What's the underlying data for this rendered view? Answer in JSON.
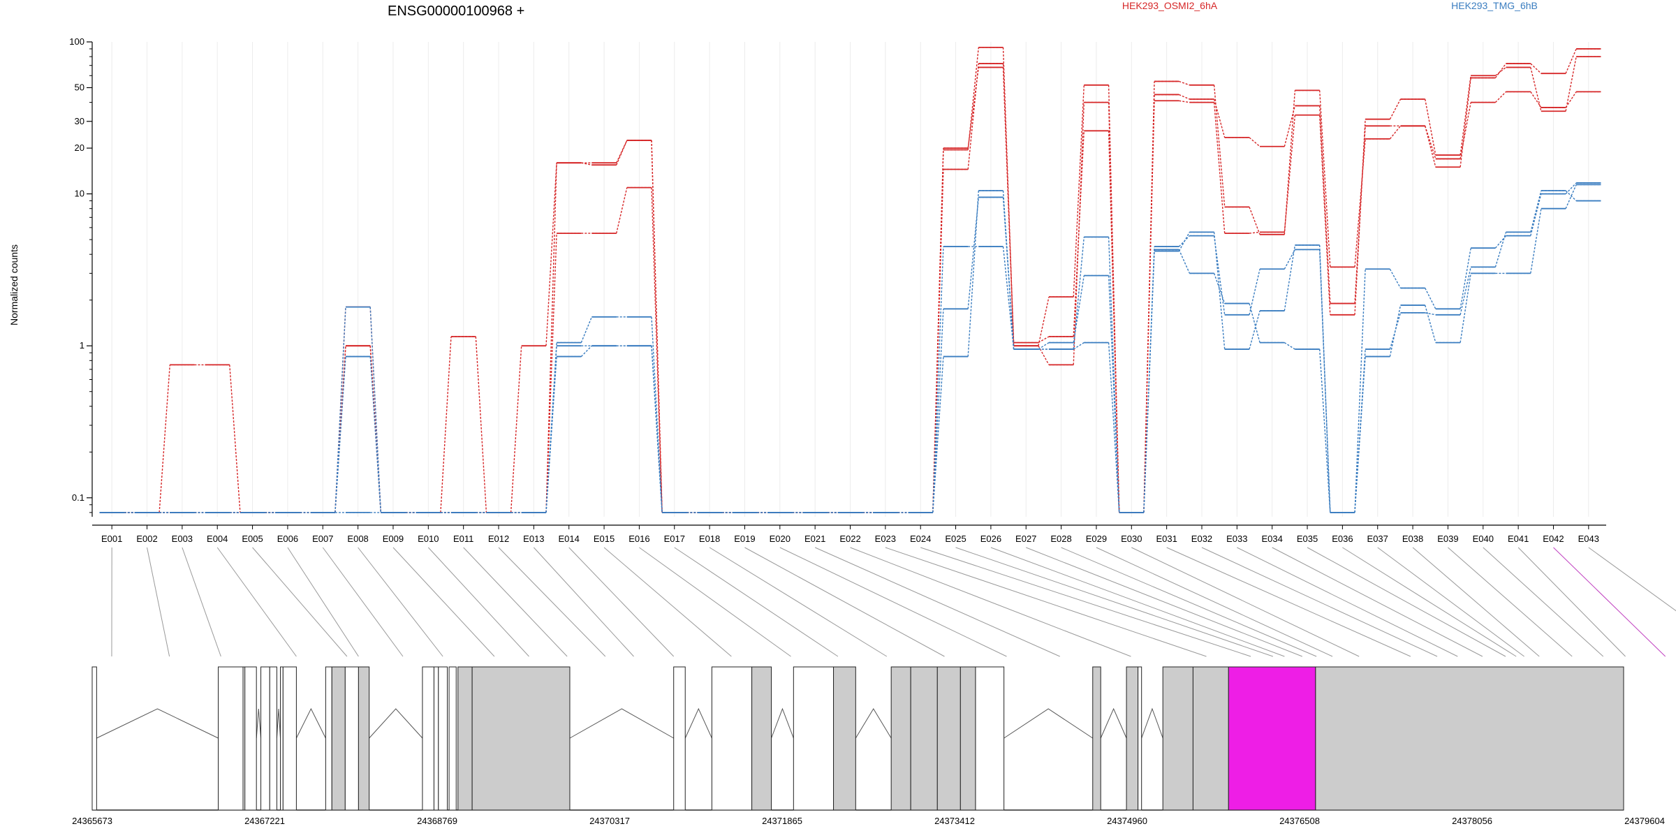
{
  "chart_data": {
    "type": "line",
    "title": "ENSG00000100968 +",
    "ylabel": "Normalized counts",
    "yscale": "log",
    "ylim": [
      0.075,
      100
    ],
    "yticks": [
      {
        "value": 0.1,
        "label": "0.1"
      },
      {
        "value": 1,
        "label": "1"
      },
      {
        "value": 10,
        "label": "10"
      },
      {
        "value": 20,
        "label": "20"
      },
      {
        "value": 30,
        "label": "30"
      },
      {
        "value": 50,
        "label": "50"
      },
      {
        "value": 100,
        "label": "100"
      }
    ],
    "legend": [
      {
        "name": "HEK293_OSMI2_6hA",
        "color": "#d62728"
      },
      {
        "name": "HEK293_TMG_6hB",
        "color": "#3a7dc0"
      }
    ],
    "categories": [
      "E001",
      "E002",
      "E003",
      "E004",
      "E005",
      "E006",
      "E007",
      "E008",
      "E009",
      "E010",
      "E011",
      "E012",
      "E013",
      "E014",
      "E015",
      "E016",
      "E017",
      "E018",
      "E019",
      "E020",
      "E021",
      "E022",
      "E023",
      "E024",
      "E025",
      "E026",
      "E027",
      "E028",
      "E029",
      "E030",
      "E031",
      "E032",
      "E033",
      "E034",
      "E035",
      "E036",
      "E037",
      "E038",
      "E039",
      "E040",
      "E041",
      "E042",
      "E043"
    ],
    "series": [
      {
        "group": 0,
        "values": [
          0.08,
          0.08,
          0.08,
          0.08,
          0.08,
          0.08,
          0.08,
          1.8,
          0.08,
          0.08,
          1.15,
          0.08,
          0.08,
          5.5,
          5.5,
          11,
          0.08,
          0.08,
          0.08,
          0.08,
          0.08,
          0.08,
          0.08,
          0.08,
          20,
          68,
          1.05,
          1.15,
          26,
          0.08,
          55,
          52,
          8.2,
          5.4,
          48,
          3.3,
          23,
          28,
          17,
          40,
          47,
          37,
          47
        ]
      },
      {
        "group": 0,
        "values": [
          0.08,
          0.08,
          0.75,
          0.75,
          0.08,
          0.08,
          0.08,
          1.0,
          0.08,
          0.08,
          0.08,
          0.08,
          1.0,
          16,
          15.5,
          22.5,
          0.08,
          0.08,
          0.08,
          0.08,
          0.08,
          0.08,
          0.08,
          0.08,
          14.5,
          72,
          1.0,
          0.75,
          40,
          0.08,
          45,
          42,
          23.5,
          20.5,
          38,
          1.9,
          28,
          28,
          15,
          58,
          72,
          62,
          90
        ]
      },
      {
        "group": 0,
        "values": [
          0.08,
          0.08,
          0.08,
          0.08,
          0.08,
          0.08,
          0.08,
          1.0,
          0.08,
          0.08,
          0.08,
          0.08,
          0.08,
          16,
          16,
          22.5,
          0.08,
          0.08,
          0.08,
          0.08,
          0.08,
          0.08,
          0.08,
          0.08,
          19.5,
          92,
          1.0,
          2.1,
          52,
          0.08,
          41,
          40,
          5.5,
          5.6,
          33,
          1.6,
          31,
          42,
          18,
          60,
          68,
          35,
          80
        ]
      },
      {
        "group": 1,
        "values": [
          0.08,
          0.08,
          0.08,
          0.08,
          0.08,
          0.08,
          0.08,
          1.8,
          0.08,
          0.08,
          0.08,
          0.08,
          0.08,
          1.0,
          1.0,
          1.0,
          0.08,
          0.08,
          0.08,
          0.08,
          0.08,
          0.08,
          0.08,
          0.08,
          4.5,
          4.5,
          0.95,
          0.95,
          1.05,
          0.08,
          4.3,
          3.0,
          1.9,
          1.05,
          0.95,
          0.08,
          0.85,
          1.85,
          1.05,
          3.0,
          3.0,
          8.0,
          11.5
        ]
      },
      {
        "group": 1,
        "values": [
          0.08,
          0.08,
          0.08,
          0.08,
          0.08,
          0.08,
          0.08,
          0.85,
          0.08,
          0.08,
          0.08,
          0.08,
          0.08,
          0.85,
          1.0,
          1.0,
          0.08,
          0.08,
          0.08,
          0.08,
          0.08,
          0.08,
          0.08,
          0.08,
          1.75,
          9.5,
          0.95,
          1.05,
          2.9,
          0.08,
          4.5,
          5.3,
          1.6,
          3.2,
          4.3,
          0.08,
          3.2,
          2.4,
          1.75,
          4.4,
          5.3,
          10,
          11.8
        ]
      },
      {
        "group": 1,
        "values": [
          0.08,
          0.08,
          0.08,
          0.08,
          0.08,
          0.08,
          0.08,
          0.08,
          0.08,
          0.08,
          0.08,
          0.08,
          0.08,
          1.05,
          1.55,
          1.55,
          0.08,
          0.08,
          0.08,
          0.08,
          0.08,
          0.08,
          0.08,
          0.08,
          0.85,
          10.5,
          0.95,
          0.95,
          5.2,
          0.08,
          4.2,
          5.6,
          0.95,
          1.7,
          4.6,
          0.08,
          0.95,
          1.65,
          1.6,
          3.3,
          5.6,
          10.5,
          9.0
        ]
      }
    ],
    "exon_x": [
      0.22,
      0.87,
      1.45,
      2.3,
      2.87,
      3.0,
      3.5,
      3.95,
      4.53,
      4.92,
      5.35,
      5.78,
      6.1,
      6.55,
      7.2,
      7.87,
      8.4,
      8.95,
      9.6,
      10.3,
      10.9,
      11.7,
      12.55,
      13.05,
      13.3,
      13.43,
      13.63,
      13.79,
      13.97,
      14.27,
      14.85,
      15.15,
      15.38,
      15.66,
      15.92,
      16.04,
      16.13,
      16.3,
      16.67,
      17.02,
      17.27,
      17.72,
      18.55
    ],
    "gene_model": {
      "start": 24365673,
      "end": 24379604,
      "coord_labels": [
        "24365673",
        "24367221",
        "24368769",
        "24370317",
        "24371865",
        "24373412",
        "24374960",
        "24376508",
        "24378056",
        "24379604"
      ],
      "segments": [
        [
          0,
          0.05,
          "white"
        ],
        [
          1.42,
          1.7,
          "white"
        ],
        [
          1.7,
          1.72,
          "white"
        ],
        [
          1.72,
          1.85,
          "white"
        ],
        [
          1.9,
          2.0,
          "white"
        ],
        [
          2.0,
          2.08,
          "white"
        ],
        [
          2.12,
          2.15,
          "white"
        ],
        [
          2.15,
          2.3,
          "white"
        ],
        [
          2.63,
          2.7,
          "white"
        ],
        [
          2.7,
          2.85,
          "grey"
        ],
        [
          2.85,
          3.0,
          "white"
        ],
        [
          3.0,
          3.12,
          "grey"
        ],
        [
          3.72,
          3.85,
          "white"
        ],
        [
          3.85,
          3.9,
          "white"
        ],
        [
          3.9,
          4.0,
          "white"
        ],
        [
          4.02,
          4.1,
          "white"
        ],
        [
          4.12,
          4.28,
          "grey"
        ],
        [
          4.28,
          5.38,
          "grey"
        ],
        [
          6.55,
          6.68,
          "white"
        ],
        [
          6.98,
          7.43,
          "white"
        ],
        [
          7.43,
          7.65,
          "grey"
        ],
        [
          7.9,
          8.35,
          "white"
        ],
        [
          8.35,
          8.6,
          "grey"
        ],
        [
          9.0,
          9.22,
          "grey"
        ],
        [
          9.22,
          9.52,
          "grey"
        ],
        [
          9.52,
          9.78,
          "grey"
        ],
        [
          9.78,
          9.95,
          "grey"
        ],
        [
          9.95,
          10.27,
          "white"
        ],
        [
          11.27,
          11.36,
          "grey"
        ],
        [
          11.65,
          11.78,
          "grey"
        ],
        [
          11.78,
          11.82,
          "white"
        ],
        [
          12.06,
          12.4,
          "grey"
        ],
        [
          12.4,
          12.8,
          "grey"
        ],
        [
          12.8,
          13.78,
          "highlight"
        ],
        [
          13.78,
          17.25,
          "grey"
        ]
      ],
      "highlight_exon": "E042"
    }
  }
}
